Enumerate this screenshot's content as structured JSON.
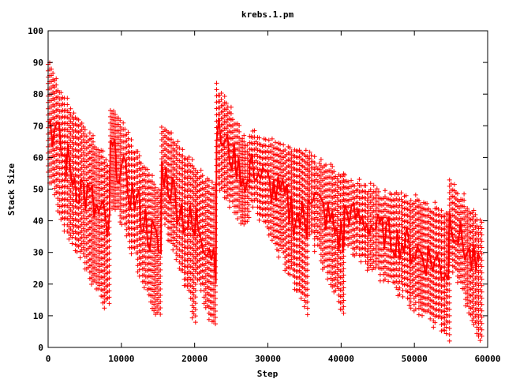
{
  "chart_data": {
    "type": "scatter",
    "title": "krebs.1.pm",
    "xlabel": "Step",
    "ylabel": "Stack Size",
    "xlim": [
      0,
      60000
    ],
    "ylim": [
      0,
      100
    ],
    "xticks": [
      0,
      10000,
      20000,
      30000,
      40000,
      50000,
      60000
    ],
    "yticks": [
      0,
      10,
      20,
      30,
      40,
      50,
      60,
      70,
      80,
      90,
      100
    ],
    "grid": false,
    "legend": "none",
    "marker": "plus",
    "color": "#ff0000",
    "series": [
      {
        "segments": [
          {
            "x": [
              0,
              2400
            ],
            "top": [
              92,
              80
            ],
            "bottom": [
              52,
              35
            ]
          },
          {
            "x": [
              2400,
              8500
            ],
            "top": [
              80,
              60
            ],
            "bottom": [
              35,
              8
            ]
          },
          {
            "x": [
              8500,
              15500
            ],
            "top": [
              79,
              50
            ],
            "bottom": [
              45,
              5
            ]
          },
          {
            "x": [
              15500,
              20200
            ],
            "top": [
              72,
              60
            ],
            "bottom": [
              40,
              5
            ]
          },
          {
            "x": [
              20200,
              23000
            ],
            "top": [
              59,
              52
            ],
            "bottom": [
              20,
              2
            ]
          },
          {
            "x": [
              23000,
              27500
            ],
            "top": [
              85,
              65
            ],
            "bottom": [
              50,
              35
            ]
          },
          {
            "x": [
              27500,
              35500
            ],
            "top": [
              70,
              63
            ],
            "bottom": [
              45,
              10
            ]
          },
          {
            "x": [
              35500,
              40500
            ],
            "top": [
              64,
              55
            ],
            "bottom": [
              35,
              8
            ]
          },
          {
            "x": [
              40500,
              54800
            ],
            "top": [
              55,
              45
            ],
            "bottom": [
              30,
              2
            ]
          },
          {
            "x": [
              54800,
              59200
            ],
            "top": [
              56,
              40
            ],
            "bottom": [
              25,
              0
            ]
          }
        ]
      }
    ]
  }
}
